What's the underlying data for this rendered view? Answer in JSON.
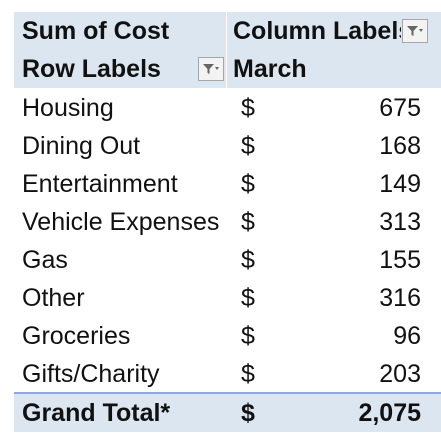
{
  "pivot": {
    "values_header": "Sum of Cost",
    "column_labels_header": "Column Labels",
    "row_labels_header": "Row Labels",
    "column_value": "March",
    "rows": [
      {
        "label": "Housing",
        "currency": "$",
        "value": "675"
      },
      {
        "label": "Dining Out",
        "currency": "$",
        "value": "168"
      },
      {
        "label": "Entertainment",
        "currency": "$",
        "value": "149"
      },
      {
        "label": "Vehicle Expenses",
        "currency": "$",
        "value": "313"
      },
      {
        "label": "Gas",
        "currency": "$",
        "value": "155"
      },
      {
        "label": "Other",
        "currency": "$",
        "value": "316"
      },
      {
        "label": "Groceries",
        "currency": "$",
        "value": "96"
      },
      {
        "label": "Gifts/Charity",
        "currency": "$",
        "value": "203"
      }
    ],
    "grand_total": {
      "label": "Grand Total*",
      "currency": "$",
      "value": "2,075"
    }
  },
  "colors": {
    "header_fill": "#dce6f1",
    "total_border": "#8ea9db"
  },
  "icons": {
    "filter": "filter-dropdown-icon"
  }
}
